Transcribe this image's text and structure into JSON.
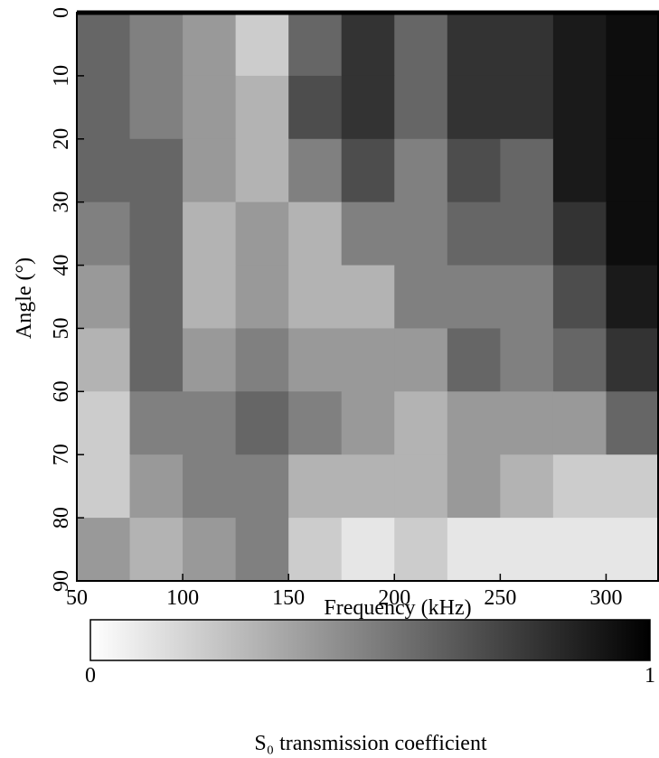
{
  "chart_data": {
    "type": "heatmap",
    "x_label": "Frequency (kHz)",
    "y_label": "Angle (°)",
    "xbins": [
      50,
      75,
      100,
      125,
      150,
      175,
      200,
      225,
      250,
      275,
      300,
      325
    ],
    "ybins": [
      0,
      10,
      20,
      30,
      40,
      50,
      60,
      70,
      80,
      90
    ],
    "z": [
      [
        0.6,
        0.5,
        0.4,
        0.2,
        0.6,
        0.8,
        0.6,
        0.8,
        0.8,
        0.9,
        0.95
      ],
      [
        0.6,
        0.5,
        0.4,
        0.3,
        0.7,
        0.8,
        0.6,
        0.8,
        0.8,
        0.9,
        0.95
      ],
      [
        0.6,
        0.6,
        0.4,
        0.3,
        0.5,
        0.7,
        0.5,
        0.7,
        0.6,
        0.9,
        0.95
      ],
      [
        0.5,
        0.6,
        0.3,
        0.4,
        0.3,
        0.5,
        0.5,
        0.6,
        0.6,
        0.8,
        0.95
      ],
      [
        0.4,
        0.6,
        0.3,
        0.4,
        0.3,
        0.3,
        0.5,
        0.5,
        0.5,
        0.7,
        0.9
      ],
      [
        0.3,
        0.6,
        0.4,
        0.5,
        0.4,
        0.4,
        0.4,
        0.6,
        0.5,
        0.6,
        0.8
      ],
      [
        0.2,
        0.5,
        0.5,
        0.6,
        0.5,
        0.4,
        0.3,
        0.4,
        0.4,
        0.4,
        0.6
      ],
      [
        0.2,
        0.4,
        0.5,
        0.5,
        0.3,
        0.3,
        0.3,
        0.4,
        0.3,
        0.2,
        0.2
      ],
      [
        0.4,
        0.3,
        0.4,
        0.5,
        0.2,
        0.1,
        0.2,
        0.1,
        0.1,
        0.1,
        0.1
      ]
    ],
    "xlim": [
      50,
      325
    ],
    "ylim": [
      0,
      90
    ],
    "xticks": [
      50,
      100,
      150,
      200,
      250,
      300
    ],
    "yticks": [
      0,
      10,
      20,
      30,
      40,
      50,
      60,
      70,
      80,
      90
    ],
    "colorbar": {
      "label": "S₀ transmission coefficient",
      "lim": [
        0,
        1
      ],
      "ticks": [
        0,
        1
      ],
      "low_color": "#ffffff",
      "high_color": "#000000"
    }
  }
}
